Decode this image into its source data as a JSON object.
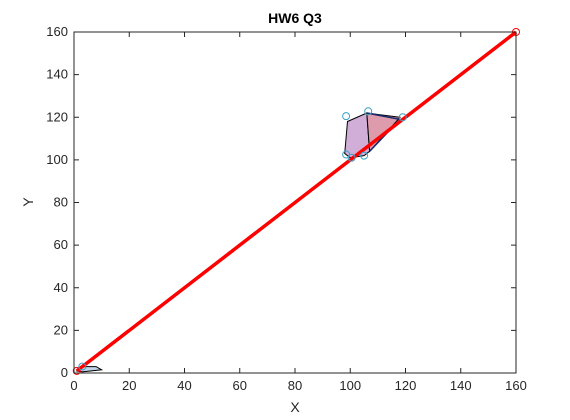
{
  "chart_data": {
    "type": "line",
    "title": "HW6 Q3",
    "xlabel": "X",
    "ylabel": "Y",
    "xlim": [
      0,
      160
    ],
    "ylim": [
      0,
      160
    ],
    "xticks": [
      0,
      20,
      40,
      60,
      80,
      100,
      120,
      140,
      160
    ],
    "yticks": [
      0,
      20,
      40,
      60,
      80,
      100,
      120,
      140,
      160
    ],
    "grid": false,
    "series": [
      {
        "kind": "line",
        "color": "#ff0000",
        "points": [
          [
            1,
            1
          ],
          [
            160,
            160
          ]
        ],
        "marker": "circle",
        "marker_color": "#ff0000"
      },
      {
        "kind": "polygon",
        "fill": "#b8cbe3",
        "edge": "#000000",
        "points": [
          [
            1,
            1
          ],
          [
            3,
            3
          ],
          [
            8,
            3
          ],
          [
            10,
            1.5
          ],
          [
            3,
            0.5
          ]
        ]
      },
      {
        "kind": "polygon",
        "fill": "#c9a0d0",
        "edge": "#000000",
        "points": [
          [
            99,
            118
          ],
          [
            106,
            122
          ],
          [
            107,
            104
          ],
          [
            105,
            102
          ],
          [
            100,
            101
          ],
          [
            98,
            103
          ]
        ]
      },
      {
        "kind": "polygon",
        "fill": "#d88a9c",
        "edge": "#000000",
        "points": [
          [
            106,
            122
          ],
          [
            118,
            120
          ],
          [
            107,
            104
          ]
        ]
      },
      {
        "kind": "polyline",
        "color": "#1a2a6c",
        "points": [
          [
            106,
            122
          ],
          [
            118,
            119
          ],
          [
            107,
            104
          ]
        ]
      },
      {
        "kind": "scatter",
        "marker": "circle-open",
        "color": "#3aa0c8",
        "points": [
          [
            98.5,
            120.5
          ],
          [
            106.5,
            122.8
          ],
          [
            119,
            120
          ],
          [
            98.5,
            102.5
          ],
          [
            100.5,
            101
          ],
          [
            105,
            102
          ],
          [
            3,
            3
          ]
        ]
      }
    ]
  }
}
